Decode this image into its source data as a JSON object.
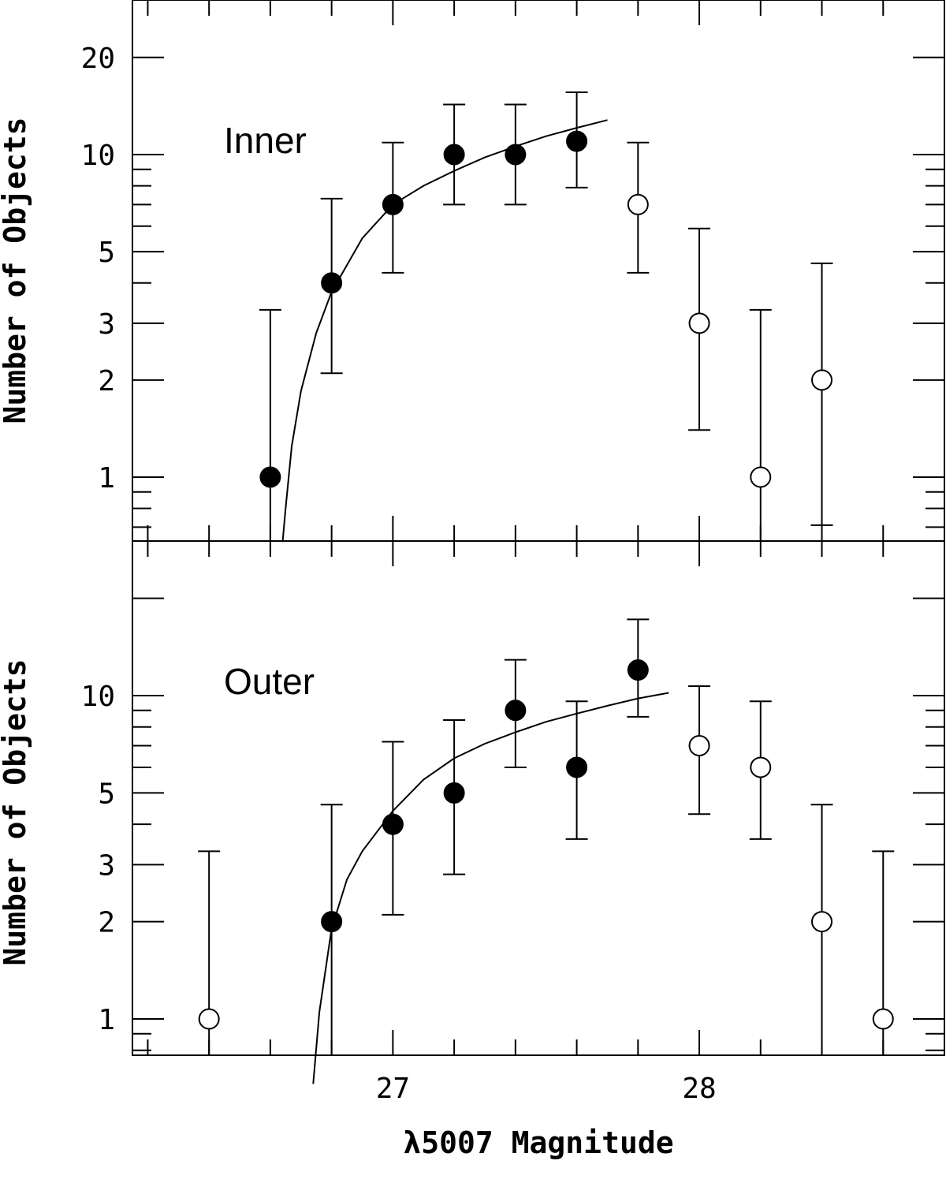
{
  "chart_data": [
    {
      "type": "scatter",
      "panel": "top",
      "label": "Inner",
      "ylabel": "Number of Objects",
      "yscale": "log",
      "ylim": [
        0.63,
        30
      ],
      "yticks": [
        1,
        2,
        3,
        5,
        10,
        20
      ],
      "ytick_labels": [
        "1",
        "2",
        "3",
        "5",
        "10",
        "20"
      ],
      "xlim": [
        26.15,
        28.8
      ],
      "filled": {
        "x": [
          26.6,
          26.8,
          27.0,
          27.2,
          27.4,
          27.6
        ],
        "y": [
          1,
          4,
          7,
          10,
          10,
          11
        ],
        "err_low": [
          0.63,
          2.1,
          4.3,
          7.0,
          7.0,
          7.9
        ],
        "err_high": [
          3.3,
          7.3,
          10.9,
          14.3,
          14.3,
          15.6
        ]
      },
      "open": {
        "x": [
          27.8,
          28.0,
          28.2,
          28.4
        ],
        "y": [
          7,
          3,
          1,
          2
        ],
        "err_low": [
          4.3,
          1.4,
          0.63,
          0.71
        ],
        "err_high": [
          10.9,
          5.9,
          3.3,
          4.6
        ]
      },
      "fit_curve": {
        "x": [
          26.64,
          26.65,
          26.67,
          26.7,
          26.75,
          26.8,
          26.9,
          27.0,
          27.1,
          27.2,
          27.3,
          27.4,
          27.5,
          27.6,
          27.7
        ],
        "y": [
          0.63,
          0.8,
          1.25,
          1.85,
          2.8,
          3.75,
          5.5,
          7.0,
          8.0,
          8.9,
          9.8,
          10.6,
          11.4,
          12.1,
          12.8
        ]
      }
    },
    {
      "type": "scatter",
      "panel": "bottom",
      "label": "Outer",
      "ylabel": "Number of Objects",
      "xlabel": "λ5007 Magnitude",
      "yscale": "log",
      "ylim": [
        0.63,
        30
      ],
      "yticks": [
        1,
        2,
        3,
        5,
        10
      ],
      "ytick_labels": [
        "1",
        "2",
        "3",
        "5",
        "10"
      ],
      "xlim": [
        26.15,
        28.8
      ],
      "xticks": [
        27,
        28
      ],
      "xtick_labels": [
        "27",
        "28"
      ],
      "filled": {
        "x": [
          26.8,
          27.0,
          27.2,
          27.4,
          27.6,
          27.8
        ],
        "y": [
          2,
          4,
          5,
          9,
          6,
          12
        ],
        "err_low": [
          0.71,
          2.1,
          2.8,
          6.0,
          3.6,
          8.6
        ],
        "err_high": [
          4.6,
          7.2,
          8.4,
          12.9,
          9.6,
          17.2
        ]
      },
      "open": {
        "x": [
          26.4,
          28.0,
          28.2,
          28.4,
          28.6
        ],
        "y": [
          1,
          7,
          6,
          2,
          1
        ],
        "err_low": [
          0.63,
          4.3,
          3.6,
          0.71,
          0.63
        ],
        "err_high": [
          3.3,
          10.7,
          9.6,
          4.6,
          3.3
        ]
      },
      "fit_curve": {
        "x": [
          26.74,
          26.76,
          26.8,
          26.85,
          26.9,
          27.0,
          27.1,
          27.2,
          27.3,
          27.4,
          27.5,
          27.6,
          27.7,
          27.8,
          27.9
        ],
        "y": [
          0.63,
          1.05,
          1.9,
          2.7,
          3.3,
          4.4,
          5.5,
          6.4,
          7.1,
          7.7,
          8.3,
          8.8,
          9.3,
          9.8,
          10.2
        ]
      }
    }
  ]
}
